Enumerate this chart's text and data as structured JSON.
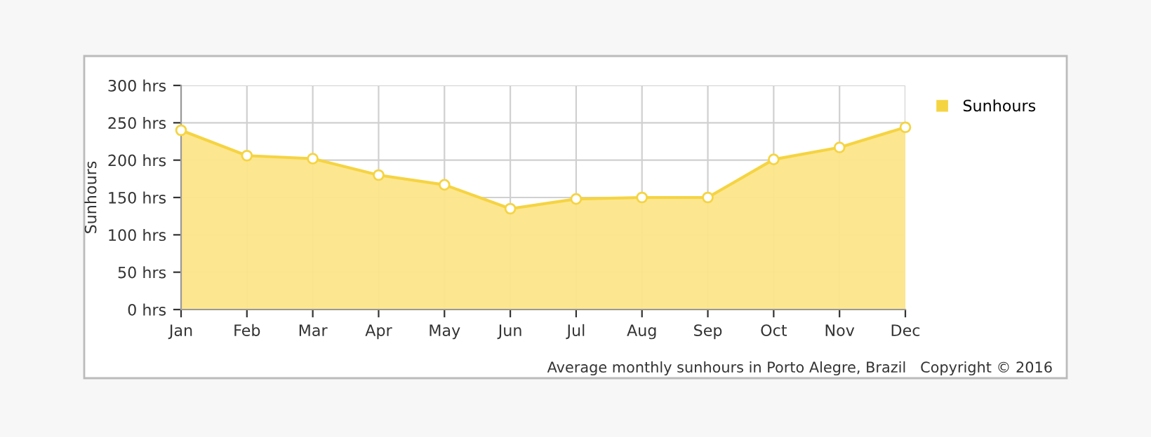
{
  "chart_data": {
    "type": "area",
    "categories": [
      "Jan",
      "Feb",
      "Mar",
      "Apr",
      "May",
      "Jun",
      "Jul",
      "Aug",
      "Sep",
      "Oct",
      "Nov",
      "Dec"
    ],
    "series": [
      {
        "name": "Sunhours",
        "color": "#f5d442",
        "values": [
          240,
          206,
          202,
          180,
          167,
          135,
          148,
          150,
          150,
          201,
          217,
          244
        ]
      }
    ],
    "ylabel": "Sunhours",
    "ylim": [
      0,
      300
    ],
    "yticks": [
      {
        "value": 0,
        "label": "0 hrs"
      },
      {
        "value": 50,
        "label": "50 hrs"
      },
      {
        "value": 100,
        "label": "100 hrs"
      },
      {
        "value": 150,
        "label": "150 hrs"
      },
      {
        "value": 200,
        "label": "200 hrs"
      },
      {
        "value": 250,
        "label": "250 hrs"
      },
      {
        "value": 300,
        "label": "300 hrs"
      }
    ],
    "grid": true,
    "legend": "top right",
    "marker": "circle",
    "annotations": [
      "Average monthly sunhours in Porto Alegre, Brazil   Copyright © 2016"
    ]
  }
}
